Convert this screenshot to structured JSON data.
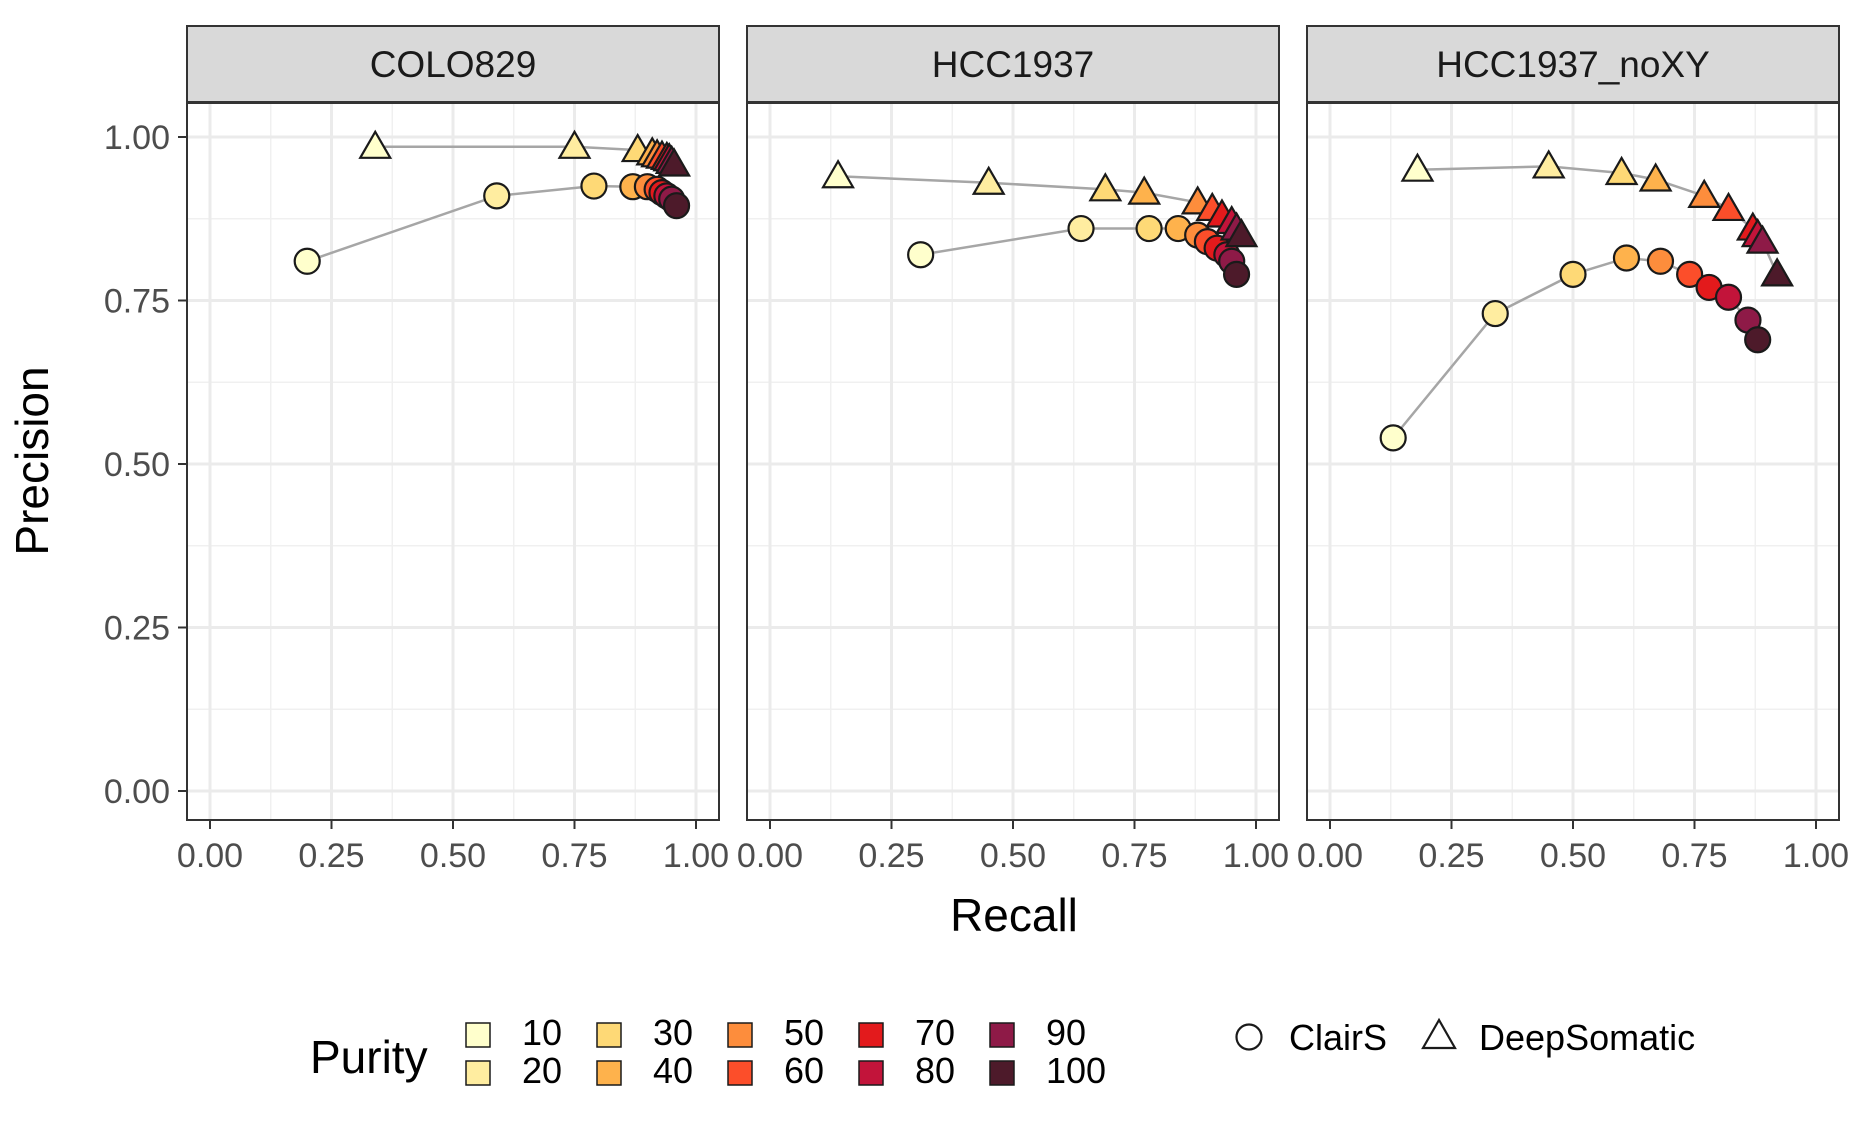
{
  "chart_data": {
    "type": "scatter",
    "subtype": "faceted-line-scatter",
    "xlabel": "Recall",
    "ylabel": "Precision",
    "xlim": [
      0,
      1
    ],
    "ylim": [
      0,
      1
    ],
    "x_ticks": [
      "0.00",
      "0.25",
      "0.50",
      "0.75",
      "1.00"
    ],
    "y_ticks": [
      "0.00",
      "0.25",
      "0.50",
      "0.75",
      "1.00"
    ],
    "grid": true,
    "legend": {
      "position": "bottom",
      "purity_title": "Purity",
      "purity_levels": [
        "10",
        "20",
        "30",
        "40",
        "50",
        "60",
        "70",
        "80",
        "90",
        "100"
      ],
      "purity_colors": [
        "#FFFFCC",
        "#FFEDA0",
        "#FED976",
        "#FEB24C",
        "#FD8D3C",
        "#FC4E2A",
        "#E31A1C",
        "#C2143A",
        "#8E1A47",
        "#4D1A2A"
      ],
      "shapes": [
        {
          "name": "ClairS",
          "shape": "circle"
        },
        {
          "name": "DeepSomatic",
          "shape": "triangle"
        }
      ]
    },
    "facets": [
      {
        "title": "COLO829",
        "series": [
          {
            "name": "ClairS",
            "shape": "circle",
            "recall": [
              0.2,
              0.59,
              0.79,
              0.87,
              0.9,
              0.92,
              0.93,
              0.94,
              0.95,
              0.96
            ],
            "precision": [
              0.81,
              0.91,
              0.925,
              0.924,
              0.924,
              0.92,
              0.915,
              0.91,
              0.905,
              0.895
            ]
          },
          {
            "name": "DeepSomatic",
            "shape": "triangle",
            "recall": [
              0.34,
              0.75,
              0.88,
              0.91,
              0.92,
              0.93,
              0.94,
              0.945,
              0.95,
              0.955
            ],
            "precision": [
              0.985,
              0.985,
              0.98,
              0.975,
              0.972,
              0.97,
              0.968,
              0.966,
              0.962,
              0.958
            ]
          }
        ]
      },
      {
        "title": "HCC1937",
        "series": [
          {
            "name": "ClairS",
            "shape": "circle",
            "recall": [
              0.31,
              0.64,
              0.78,
              0.84,
              0.88,
              0.9,
              0.92,
              0.94,
              0.95,
              0.96
            ],
            "precision": [
              0.82,
              0.86,
              0.86,
              0.86,
              0.85,
              0.84,
              0.83,
              0.82,
              0.81,
              0.79
            ]
          },
          {
            "name": "DeepSomatic",
            "shape": "triangle",
            "recall": [
              0.14,
              0.45,
              0.69,
              0.77,
              0.88,
              0.91,
              0.93,
              0.95,
              0.96,
              0.97
            ],
            "precision": [
              0.94,
              0.93,
              0.92,
              0.915,
              0.9,
              0.89,
              0.88,
              0.87,
              0.86,
              0.85
            ]
          }
        ]
      },
      {
        "title": "HCC1937_noXY",
        "series": [
          {
            "name": "ClairS",
            "shape": "circle",
            "recall": [
              0.13,
              0.34,
              0.5,
              0.61,
              0.68,
              0.74,
              0.78,
              0.82,
              0.86,
              0.88
            ],
            "precision": [
              0.54,
              0.73,
              0.79,
              0.815,
              0.81,
              0.79,
              0.77,
              0.755,
              0.72,
              0.69
            ]
          },
          {
            "name": "DeepSomatic",
            "shape": "triangle",
            "recall": [
              0.18,
              0.45,
              0.6,
              0.67,
              0.77,
              0.82,
              0.87,
              0.88,
              0.89,
              0.92
            ],
            "precision": [
              0.95,
              0.955,
              0.945,
              0.935,
              0.91,
              0.89,
              0.86,
              0.85,
              0.84,
              0.79
            ]
          }
        ]
      }
    ]
  }
}
